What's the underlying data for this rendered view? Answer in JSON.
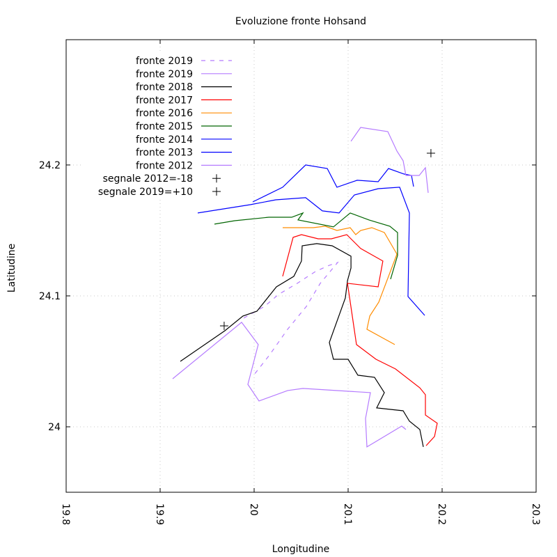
{
  "chart_data": {
    "type": "line",
    "title": "Evoluzione fronte Hohsand",
    "xlabel": "Longitudine",
    "ylabel": "Latitudine",
    "xlim": [
      19.8,
      20.3
    ],
    "ylim": [
      23.95,
      24.2957
    ],
    "xticks": [
      19.8,
      19.9,
      20,
      20.1,
      20.2,
      20.3
    ],
    "xtick_labels": [
      "19.8",
      "19.9",
      "20",
      "20.1",
      "20.2",
      "20.3"
    ],
    "yticks": [
      24,
      24.1,
      24.2
    ],
    "ytick_labels": [
      "24",
      "24.1",
      "24.2"
    ],
    "grid": true,
    "legend_position": "top-left",
    "series": [
      {
        "name": "fronte 2019",
        "color": "#b57bff",
        "dash": true,
        "x": [
          19.9889,
          20.0111,
          20.0259,
          20.0459,
          20.0652,
          20.08,
          20.0889,
          20.0704,
          20.0556,
          20.0356,
          20.0163,
          20.0
        ],
        "y": [
          24.083,
          24.092,
          24.1011,
          24.1096,
          24.1186,
          24.1234,
          24.1255,
          24.1096,
          24.092,
          24.0745,
          24.0548,
          24.0399
        ]
      },
      {
        "name": "fronte 2019",
        "color": "#b57bff",
        "dash": false,
        "x": [
          19.9133,
          19.9867,
          20.0044,
          19.9933,
          20.0052,
          20.0356,
          20.0519,
          20.1237,
          20.1185,
          20.12,
          20.157,
          20.1615
        ],
        "y": [
          24.0367,
          24.0798,
          24.0628,
          24.0324,
          24.0197,
          24.0277,
          24.0293,
          24.0261,
          24.0064,
          23.9846,
          24.0005,
          23.9979
        ]
      },
      {
        "name": "fronte 2018",
        "color": "#000000",
        "dash": false,
        "x": [
          19.9215,
          19.9689,
          19.9881,
          20.003,
          20.0237,
          20.0422,
          20.0504,
          20.0511,
          20.0667,
          20.083,
          20.103,
          20.103,
          20.0993,
          20.097,
          20.08,
          20.0844,
          20.1,
          20.1104,
          20.1281,
          20.1385,
          20.1304,
          20.1585,
          20.1652,
          20.1763,
          20.18
        ],
        "y": [
          24.05,
          24.0734,
          24.0846,
          24.0883,
          24.1069,
          24.1149,
          24.1266,
          24.1383,
          24.1399,
          24.1383,
          24.1303,
          24.1213,
          24.1117,
          24.0984,
          24.0644,
          24.0516,
          24.0516,
          24.0394,
          24.0378,
          24.0261,
          24.0144,
          24.0122,
          24.0043,
          23.9979,
          23.9846
        ]
      },
      {
        "name": "fronte 2017",
        "color": "#ff0000",
        "dash": false,
        "x": [
          20.0304,
          20.0415,
          20.0504,
          20.0681,
          20.0822,
          20.0985,
          20.1133,
          20.137,
          20.1319,
          20.0993,
          20.1089,
          20.1296,
          20.1504,
          20.1763,
          20.1822,
          20.1822,
          20.1948,
          20.1919,
          20.183
        ],
        "y": [
          24.1149,
          24.1447,
          24.1468,
          24.1436,
          24.1436,
          24.1468,
          24.1362,
          24.1266,
          24.1069,
          24.1096,
          24.0628,
          24.0516,
          24.0442,
          24.0298,
          24.0245,
          24.009,
          24.0027,
          23.9926,
          23.9856
        ]
      },
      {
        "name": "fronte 2016",
        "color": "#ff8c00",
        "dash": false,
        "x": [
          20.0304,
          20.063,
          20.0756,
          20.0881,
          20.1022,
          20.1081,
          20.1133,
          20.1252,
          20.1385,
          20.1519,
          20.1326,
          20.123,
          20.12,
          20.1496
        ],
        "y": [
          24.1521,
          24.1521,
          24.1532,
          24.15,
          24.1521,
          24.1468,
          24.15,
          24.1521,
          24.1484,
          24.1319,
          24.0952,
          24.0846,
          24.0745,
          24.0628
        ]
      },
      {
        "name": "fronte 2015",
        "color": "#006400",
        "dash": false,
        "x": [
          19.9578,
          19.9793,
          20.0156,
          20.04,
          20.0519,
          20.0467,
          20.0844,
          20.1022,
          20.1222,
          20.1444,
          20.1526,
          20.1526,
          20.1452
        ],
        "y": [
          24.1548,
          24.1574,
          24.1601,
          24.1601,
          24.1633,
          24.158,
          24.1527,
          24.1633,
          24.158,
          24.1532,
          24.1484,
          24.1309,
          24.1128
        ]
      },
      {
        "name": "fronte 2014",
        "color": "#0000ff",
        "dash": false,
        "x": [
          19.94,
          19.9963,
          20.023,
          20.0548,
          20.0726,
          20.0904,
          20.1067,
          20.1319,
          20.1548,
          20.1652,
          20.1637,
          20.1815
        ],
        "y": [
          24.1633,
          24.1697,
          24.1734,
          24.175,
          24.1649,
          24.1633,
          24.1771,
          24.1819,
          24.183,
          24.1633,
          24.0995,
          24.0851
        ]
      },
      {
        "name": "fronte 2013",
        "color": "#0000ff",
        "dash": false,
        "x": [
          19.9985,
          20.0304,
          20.0548,
          20.0778,
          20.0881,
          20.1096,
          20.1319,
          20.143,
          20.1593,
          20.1674,
          20.1696
        ],
        "y": [
          24.1718,
          24.183,
          24.2,
          24.1973,
          24.183,
          24.1883,
          24.1872,
          24.1973,
          24.1931,
          24.192,
          24.1835
        ]
      },
      {
        "name": "fronte 2012",
        "color": "#b57bff",
        "dash": false,
        "x": [
          20.103,
          20.1133,
          20.1422,
          20.1519,
          20.1585,
          20.1615,
          20.1756,
          20.1822,
          20.1852
        ],
        "y": [
          24.2181,
          24.2287,
          24.2255,
          24.2106,
          24.2032,
          24.192,
          24.192,
          24.1979,
          24.1787
        ]
      }
    ],
    "points": [
      {
        "name": "segnale 2012=-18",
        "color": "#000000",
        "marker": "plus",
        "x": 20.1881,
        "y": 24.209
      },
      {
        "name": "segnale 2019=+10",
        "color": "#000000",
        "marker": "plus",
        "x": 19.9681,
        "y": 24.0771
      }
    ]
  }
}
